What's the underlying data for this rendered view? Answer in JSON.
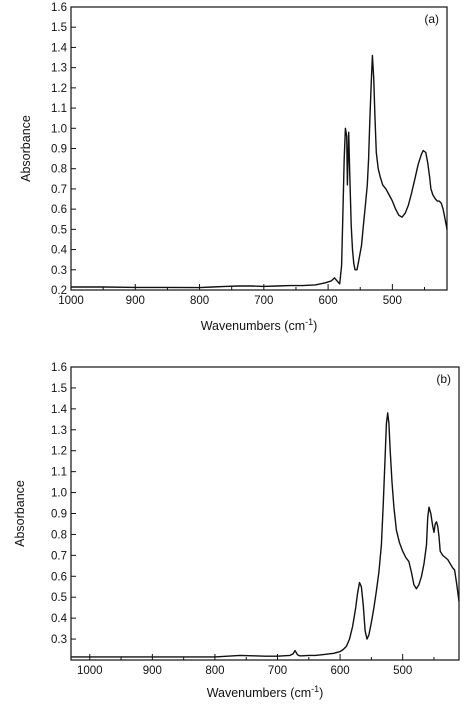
{
  "chart_data": [
    {
      "type": "line",
      "panel_label": "(a)",
      "xlabel": "Wavenumbers (cm",
      "xlabel_sup": "-1",
      "xlabel_end": ")",
      "ylabel": "Absorbance",
      "xlim": [
        1000,
        415
      ],
      "ylim": [
        0.2,
        1.6
      ],
      "x_reversed": true,
      "grid": false,
      "xticks": [
        1000,
        900,
        800,
        700,
        600,
        500
      ],
      "xtick_labels": [
        "1000",
        "900",
        "800",
        "700",
        "600",
        "500"
      ],
      "yticks": [
        0.2,
        0.3,
        0.4,
        0.5,
        0.6,
        0.7,
        0.8,
        0.9,
        1.0,
        1.1,
        1.2,
        1.3,
        1.4,
        1.5,
        1.6
      ],
      "ytick_labels": [
        "0.2",
        "0.3",
        "0.4",
        "0.5",
        "0.6",
        "0.7",
        "0.8",
        "0.9",
        "1.0",
        "1.1",
        "1.2",
        "1.3",
        "1.4",
        "1.5",
        "1.6"
      ],
      "series": [
        {
          "x": [
            1000,
            950,
            900,
            850,
            800,
            780,
            760,
            740,
            720,
            700,
            680,
            660,
            640,
            620,
            605,
            595,
            590,
            586,
            582,
            579,
            577,
            575,
            573,
            571,
            570,
            568,
            566,
            564,
            562,
            560,
            558,
            555,
            552,
            548,
            545,
            542,
            539,
            537,
            535,
            533,
            531,
            529,
            527,
            525,
            522,
            519,
            515,
            510,
            505,
            500,
            495,
            490,
            485,
            480,
            475,
            470,
            465,
            460,
            455,
            452,
            448,
            445,
            442,
            440,
            437,
            433,
            430,
            427,
            424,
            421,
            418,
            415
          ],
          "y": [
            0.215,
            0.215,
            0.213,
            0.213,
            0.212,
            0.215,
            0.218,
            0.22,
            0.22,
            0.218,
            0.22,
            0.222,
            0.222,
            0.225,
            0.235,
            0.245,
            0.26,
            0.245,
            0.23,
            0.32,
            0.58,
            0.85,
            1.0,
            0.96,
            0.72,
            0.98,
            0.75,
            0.52,
            0.4,
            0.33,
            0.3,
            0.3,
            0.35,
            0.42,
            0.52,
            0.62,
            0.72,
            0.85,
            1.05,
            1.22,
            1.36,
            1.25,
            1.05,
            0.88,
            0.8,
            0.76,
            0.72,
            0.7,
            0.67,
            0.64,
            0.6,
            0.57,
            0.56,
            0.58,
            0.62,
            0.68,
            0.75,
            0.82,
            0.87,
            0.89,
            0.88,
            0.83,
            0.76,
            0.7,
            0.67,
            0.65,
            0.64,
            0.64,
            0.63,
            0.6,
            0.55,
            0.5
          ]
        }
      ]
    },
    {
      "type": "line",
      "panel_label": "(b)",
      "xlabel": "Wavenumbers (cm",
      "xlabel_sup": "-1",
      "xlabel_end": ")",
      "ylabel": "Absorbance",
      "xlim": [
        1030,
        410
      ],
      "ylim": [
        0.2,
        1.6
      ],
      "x_reversed": true,
      "grid": false,
      "xticks": [
        1000,
        900,
        800,
        700,
        600,
        500
      ],
      "xtick_labels": [
        "1000",
        "900",
        "800",
        "700",
        "600",
        "500"
      ],
      "yticks": [
        0.3,
        0.4,
        0.5,
        0.6,
        0.7,
        0.8,
        0.9,
        1.0,
        1.1,
        1.2,
        1.3,
        1.4,
        1.5,
        1.6
      ],
      "ytick_labels": [
        "0.3",
        "0.4",
        "0.5",
        "0.6",
        "0.7",
        "0.8",
        "0.9",
        "1.0",
        "1.1",
        "1.2",
        "1.3",
        "1.4",
        "1.5",
        "1.6"
      ],
      "series": [
        {
          "x": [
            1030,
            1000,
            950,
            900,
            850,
            800,
            780,
            760,
            740,
            720,
            700,
            690,
            680,
            675,
            672,
            670,
            668,
            665,
            660,
            650,
            640,
            630,
            620,
            610,
            600,
            595,
            590,
            585,
            580,
            575,
            572,
            569,
            566,
            563,
            560,
            557,
            554,
            550,
            546,
            542,
            538,
            534,
            531,
            528,
            526,
            524,
            522,
            520,
            517,
            514,
            510,
            505,
            500,
            495,
            490,
            486,
            482,
            478,
            474,
            470,
            466,
            462,
            460,
            458,
            455,
            452,
            450,
            448,
            446,
            444,
            442,
            440,
            436,
            432,
            428,
            424,
            420,
            417,
            414,
            410
          ],
          "y": [
            0.215,
            0.215,
            0.215,
            0.215,
            0.215,
            0.215,
            0.218,
            0.222,
            0.22,
            0.218,
            0.218,
            0.22,
            0.222,
            0.23,
            0.245,
            0.235,
            0.225,
            0.22,
            0.22,
            0.222,
            0.222,
            0.225,
            0.228,
            0.232,
            0.24,
            0.25,
            0.265,
            0.3,
            0.36,
            0.45,
            0.52,
            0.57,
            0.55,
            0.46,
            0.34,
            0.3,
            0.32,
            0.38,
            0.45,
            0.53,
            0.62,
            0.75,
            0.95,
            1.18,
            1.33,
            1.38,
            1.33,
            1.2,
            1.05,
            0.93,
            0.82,
            0.76,
            0.72,
            0.69,
            0.67,
            0.62,
            0.56,
            0.54,
            0.56,
            0.6,
            0.66,
            0.75,
            0.88,
            0.93,
            0.9,
            0.84,
            0.81,
            0.85,
            0.86,
            0.84,
            0.79,
            0.72,
            0.7,
            0.69,
            0.68,
            0.66,
            0.64,
            0.63,
            0.57,
            0.48
          ]
        }
      ]
    }
  ]
}
